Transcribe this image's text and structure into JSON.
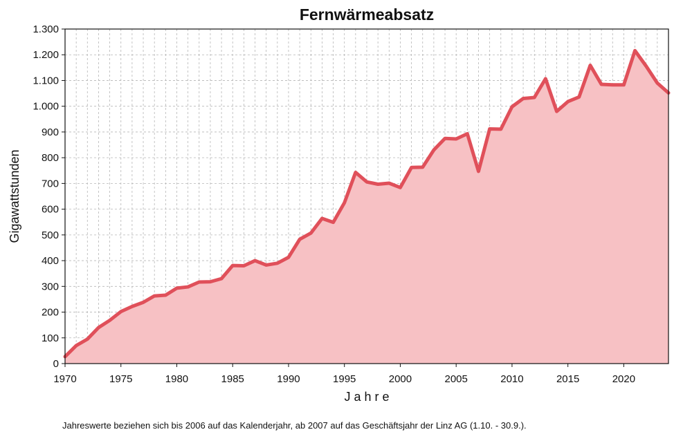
{
  "chart_data": {
    "type": "area",
    "title": "Fernwärmeabsatz",
    "xlabel": "J a h r e",
    "ylabel": "Gigawattstunden",
    "footnote": "Jahreswerte beziehen sich bis 2006 auf das Kalenderjahr, ab 2007 auf das Geschäftsjahr der Linz AG (1.10. - 30.9.).",
    "xlim": [
      1970,
      2024
    ],
    "ylim": [
      0,
      1300
    ],
    "x_ticks": [
      1970,
      1975,
      1980,
      1985,
      1990,
      1995,
      2000,
      2005,
      2010,
      2015,
      2020
    ],
    "x_tick_labels": [
      "1970",
      "1975",
      "1980",
      "1985",
      "1990",
      "1995",
      "2000",
      "2005",
      "2010",
      "2015",
      "2020"
    ],
    "y_ticks": [
      0,
      100,
      200,
      300,
      400,
      500,
      600,
      700,
      800,
      900,
      1000,
      1100,
      1200,
      1300
    ],
    "y_tick_labels": [
      "0",
      "100",
      "200",
      "300",
      "400",
      "500",
      "600",
      "700",
      "800",
      "900",
      "1.000",
      "1.100",
      "1.200",
      "1.300"
    ],
    "grid": true,
    "colors": {
      "line": "#e0505a",
      "fill": "#f7c1c4",
      "grid": "#b5b5b5",
      "frame": "#111111"
    },
    "series": [
      {
        "x": [
          1970,
          1971,
          1972,
          1973,
          1974,
          1975,
          1976,
          1977,
          1978,
          1979,
          1980,
          1981,
          1982,
          1983,
          1984,
          1985,
          1986,
          1987,
          1988,
          1989,
          1990,
          1991,
          1992,
          1993,
          1994,
          1995,
          1996,
          1997,
          1998,
          1999,
          2000,
          2001,
          2002,
          2003,
          2004,
          2005,
          2006,
          2007,
          2008,
          2009,
          2010,
          2011,
          2012,
          2013,
          2014,
          2015,
          2016,
          2017,
          2018,
          2019,
          2020,
          2021,
          2022,
          2023,
          2024
        ],
        "values": [
          27,
          70,
          95,
          140,
          168,
          202,
          222,
          238,
          263,
          266,
          293,
          298,
          317,
          318,
          330,
          381,
          380,
          400,
          383,
          390,
          413,
          483,
          507,
          564,
          549,
          625,
          743,
          706,
          697,
          701,
          684,
          762,
          763,
          830,
          875,
          873,
          893,
          747,
          912,
          911,
          998,
          1030,
          1034,
          1107,
          980,
          1018,
          1036,
          1159,
          1085,
          1083,
          1083,
          1216,
          1156,
          1090,
          1052
        ]
      }
    ]
  }
}
